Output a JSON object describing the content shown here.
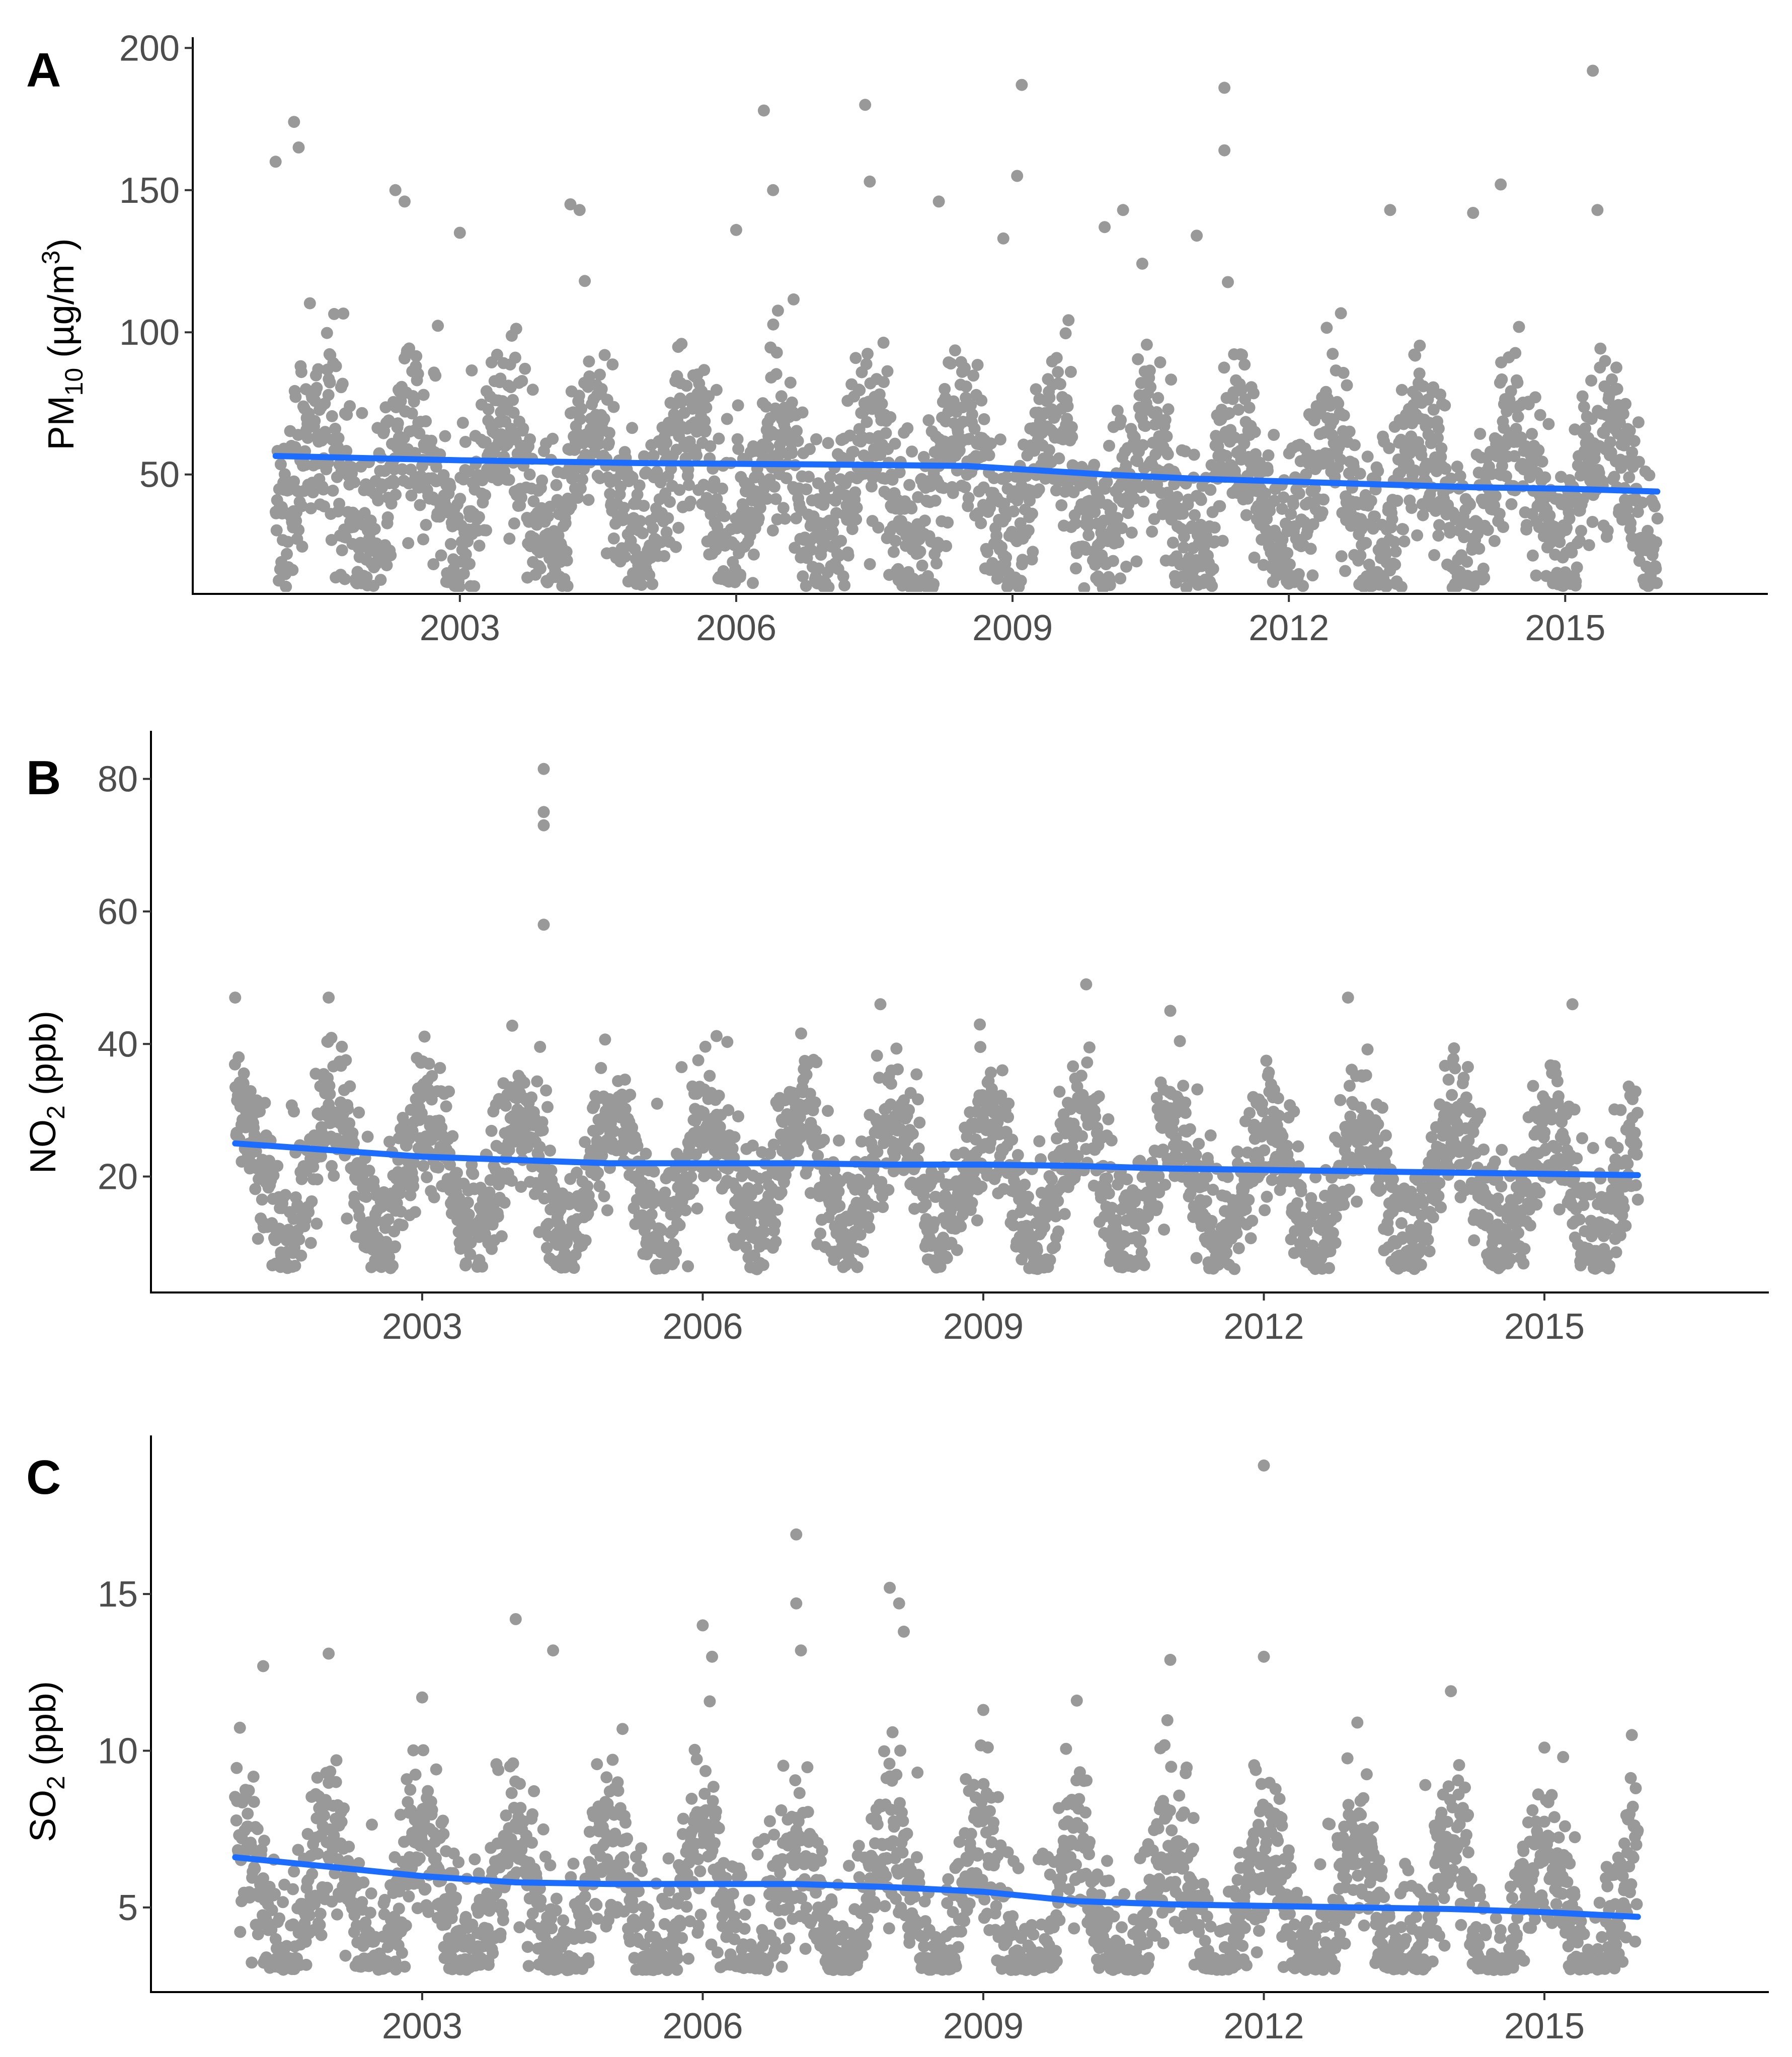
{
  "chart_data": [
    {
      "type": "scatter",
      "panel_label": "A",
      "ylabel_main": "PM",
      "ylabel_sub": "10",
      "ylabel_mid": " (µg/m",
      "ylabel_sup": "3",
      "ylabel_end": ")",
      "xlabel": "",
      "x_ticks": [
        2003,
        2006,
        2009,
        2012,
        2015
      ],
      "x_tick_labels": [
        "2003",
        "2006",
        "2009",
        "2012",
        "2015"
      ],
      "xlim": [
        2000.1,
        2017.2
      ],
      "y_ticks": [
        50,
        100,
        150,
        200
      ],
      "y_tick_labels": [
        "50",
        "100",
        "150",
        "200"
      ],
      "ylim": [
        8,
        202
      ],
      "data_range_x": [
        2001.0,
        2016.0
      ],
      "point_color": "#999999",
      "seasonal": {
        "base": 48,
        "amplitude": 22,
        "noise": 16,
        "min": 10,
        "peak_phase": 0.45
      },
      "outliers": [
        [
          2001.0,
          160
        ],
        [
          2001.2,
          174
        ],
        [
          2001.25,
          165
        ],
        [
          2002.3,
          150
        ],
        [
          2002.4,
          146
        ],
        [
          2003.0,
          135
        ],
        [
          2004.2,
          145
        ],
        [
          2004.3,
          143
        ],
        [
          2006.0,
          136
        ],
        [
          2006.3,
          178
        ],
        [
          2006.4,
          150
        ],
        [
          2007.4,
          180
        ],
        [
          2007.45,
          153
        ],
        [
          2008.2,
          146
        ],
        [
          2008.9,
          133
        ],
        [
          2009.1,
          187
        ],
        [
          2009.05,
          155
        ],
        [
          2010.0,
          137
        ],
        [
          2010.2,
          143
        ],
        [
          2011.0,
          134
        ],
        [
          2011.3,
          186
        ],
        [
          2011.3,
          164
        ],
        [
          2013.1,
          143
        ],
        [
          2014.0,
          142
        ],
        [
          2014.3,
          152
        ],
        [
          2015.3,
          192
        ],
        [
          2015.35,
          143
        ]
      ],
      "trend": {
        "x": [
          2001.0,
          2003.0,
          2005.0,
          2007.0,
          2008.5,
          2009.0,
          2010.0,
          2011.0,
          2012.0,
          2013.0,
          2014.0,
          2015.0,
          2016.0
        ],
        "y": [
          56.5,
          55,
          54,
          53.5,
          53,
          52,
          50,
          48.5,
          47.5,
          46.5,
          45.5,
          45,
          44
        ]
      },
      "trend_color": "#1c6cff"
    },
    {
      "type": "scatter",
      "panel_label": "B",
      "ylabel_main": "NO",
      "ylabel_sub": "2",
      "ylabel_mid": " (ppb)",
      "ylabel_sup": "",
      "ylabel_end": "",
      "xlabel": "",
      "x_ticks": [
        2003,
        2006,
        2009,
        2012,
        2015
      ],
      "x_tick_labels": [
        "2003",
        "2006",
        "2009",
        "2012",
        "2015"
      ],
      "xlim": [
        2000.1,
        2017.4
      ],
      "y_ticks": [
        20,
        40,
        60,
        80
      ],
      "y_tick_labels": [
        "20",
        "40",
        "60",
        "80"
      ],
      "ylim": [
        2.5,
        86.5
      ],
      "data_range_x": [
        2001.0,
        2016.0
      ],
      "point_color": "#999999",
      "seasonal": {
        "base": 21,
        "amplitude": 9,
        "noise": 5,
        "min": 6,
        "peak_phase": 0.05
      },
      "outliers": [
        [
          2001.0,
          47
        ],
        [
          2002.0,
          47
        ],
        [
          2004.3,
          81.5
        ],
        [
          2004.3,
          75
        ],
        [
          2004.3,
          73
        ],
        [
          2004.3,
          58
        ],
        [
          2007.9,
          46
        ],
        [
          2010.1,
          49
        ],
        [
          2011.0,
          45
        ],
        [
          2012.9,
          47
        ],
        [
          2015.3,
          46
        ]
      ],
      "trend": {
        "x": [
          2001.0,
          2002.0,
          2003.0,
          2004.0,
          2005.0,
          2006.0,
          2007.0,
          2008.0,
          2009.0,
          2010.0,
          2011.0,
          2012.0,
          2013.0,
          2014.0,
          2015.0,
          2016.0
        ],
        "y": [
          25,
          24,
          23,
          22.5,
          22,
          22,
          22,
          21.8,
          21.8,
          21.6,
          21.2,
          21,
          20.8,
          20.6,
          20.4,
          20.2
        ]
      },
      "trend_color": "#1c6cff"
    },
    {
      "type": "scatter",
      "panel_label": "C",
      "ylabel_main": "SO",
      "ylabel_sub": "2",
      "ylabel_mid": " (ppb)",
      "ylabel_sup": "",
      "ylabel_end": "",
      "xlabel": "",
      "x_ticks": [
        2003,
        2006,
        2009,
        2012,
        2015
      ],
      "x_tick_labels": [
        "2003",
        "2006",
        "2009",
        "2012",
        "2015"
      ],
      "xlim": [
        2000.1,
        2017.4
      ],
      "y_ticks": [
        5,
        10,
        15
      ],
      "y_tick_labels": [
        "5",
        "10",
        "15"
      ],
      "ylim": [
        2.3,
        19.9
      ],
      "data_range_x": [
        2001.0,
        2016.0
      ],
      "point_color": "#999999",
      "seasonal": {
        "base": 5.2,
        "amplitude": 2.3,
        "noise": 1.3,
        "min": 3,
        "peak_phase": 0.0
      },
      "outliers": [
        [
          2001.3,
          12.7
        ],
        [
          2002.0,
          13.1
        ],
        [
          2003.0,
          11.7
        ],
        [
          2004.0,
          14.2
        ],
        [
          2004.4,
          13.2
        ],
        [
          2006.0,
          14.0
        ],
        [
          2006.1,
          13.0
        ],
        [
          2007.0,
          16.9
        ],
        [
          2007.0,
          14.7
        ],
        [
          2007.05,
          13.2
        ],
        [
          2008.0,
          15.2
        ],
        [
          2008.1,
          14.7
        ],
        [
          2008.15,
          13.8
        ],
        [
          2009.0,
          11.3
        ],
        [
          2010.0,
          11.6
        ],
        [
          2011.0,
          12.9
        ],
        [
          2012.0,
          19.1
        ],
        [
          2012.0,
          13.0
        ],
        [
          2013.0,
          10.9
        ],
        [
          2014.0,
          11.9
        ],
        [
          2015.0,
          10.1
        ],
        [
          2015.2,
          9.8
        ]
      ],
      "trend": {
        "x": [
          2001.0,
          2002.0,
          2003.0,
          2004.0,
          2005.0,
          2006.0,
          2007.0,
          2008.0,
          2009.0,
          2010.0,
          2011.0,
          2012.0,
          2013.0,
          2014.0,
          2015.0,
          2016.0
        ],
        "y": [
          6.6,
          6.3,
          6.0,
          5.8,
          5.75,
          5.75,
          5.75,
          5.65,
          5.5,
          5.2,
          5.1,
          5.05,
          5.0,
          4.95,
          4.85,
          4.7
        ]
      },
      "trend_color": "#1c6cff"
    }
  ]
}
